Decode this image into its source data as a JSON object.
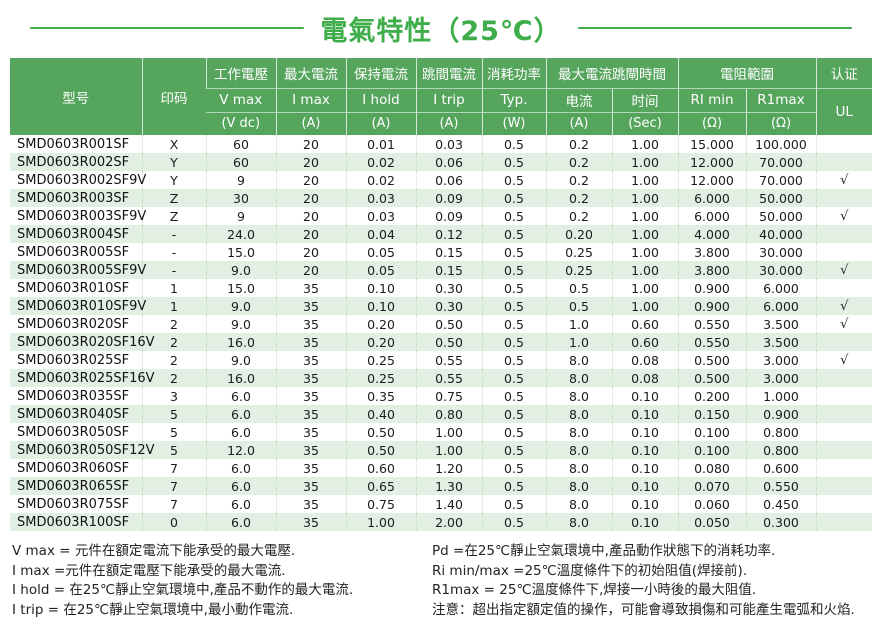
{
  "title": "電氣特性（25℃）",
  "colors": {
    "accent_green": "#3fae4a",
    "header_green": "#56a55d",
    "row_alt_green": "#e1f0e2"
  },
  "table": {
    "header": {
      "model": "型号",
      "print_code": "印码",
      "cols": [
        {
          "group": "工作電壓",
          "sub": "V max",
          "unit": "(V dc)"
        },
        {
          "group": "最大電流",
          "sub": "I max",
          "unit": "(A)"
        },
        {
          "group": "保持電流",
          "sub": "I hold",
          "unit": "(A)"
        },
        {
          "group": "跳間電流",
          "sub": "I trip",
          "unit": "(A)"
        },
        {
          "group": "消耗功率",
          "sub": "Typ.",
          "unit": "(W)"
        }
      ],
      "trip_group": {
        "label": "最大電流跳閘時間",
        "cols": [
          {
            "sub": "电流",
            "unit": "(A)"
          },
          {
            "sub": "时间",
            "unit": "(Sec)"
          }
        ]
      },
      "res_group": {
        "label": "電阻範圍",
        "cols": [
          {
            "sub": "RI min",
            "unit": "(Ω)"
          },
          {
            "sub": "R1max",
            "unit": "(Ω)"
          }
        ]
      },
      "cert_group": {
        "label": "认证",
        "sub": "UL"
      }
    },
    "rows": [
      [
        "SMD0603R001SF",
        "X",
        "60",
        "20",
        "0.01",
        "0.03",
        "0.5",
        "0.2",
        "1.00",
        "15.000",
        "100.000",
        ""
      ],
      [
        "SMD0603R002SF",
        "Y",
        "60",
        "20",
        "0.02",
        "0.06",
        "0.5",
        "0.2",
        "1.00",
        "12.000",
        "70.000",
        ""
      ],
      [
        "SMD0603R002SF9V",
        "Y",
        "9",
        "20",
        "0.02",
        "0.06",
        "0.5",
        "0.2",
        "1.00",
        "12.000",
        "70.000",
        "√"
      ],
      [
        "SMD0603R003SF",
        "Z",
        "30",
        "20",
        "0.03",
        "0.09",
        "0.5",
        "0.2",
        "1.00",
        "6.000",
        "50.000",
        ""
      ],
      [
        "SMD0603R003SF9V",
        "Z",
        "9",
        "20",
        "0.03",
        "0.09",
        "0.5",
        "0.2",
        "1.00",
        "6.000",
        "50.000",
        "√"
      ],
      [
        "SMD0603R004SF",
        "-",
        "24.0",
        "20",
        "0.04",
        "0.12",
        "0.5",
        "0.20",
        "1.00",
        "4.000",
        "40.000",
        ""
      ],
      [
        "SMD0603R005SF",
        "-",
        "15.0",
        "20",
        "0.05",
        "0.15",
        "0.5",
        "0.25",
        "1.00",
        "3.800",
        "30.000",
        ""
      ],
      [
        "SMD0603R005SF9V",
        "-",
        "9.0",
        "20",
        "0.05",
        "0.15",
        "0.5",
        "0.25",
        "1.00",
        "3.800",
        "30.000",
        "√"
      ],
      [
        "SMD0603R010SF",
        "1",
        "15.0",
        "35",
        "0.10",
        "0.30",
        "0.5",
        "0.5",
        "1.00",
        "0.900",
        "6.000",
        ""
      ],
      [
        "SMD0603R010SF9V",
        "1",
        "9.0",
        "35",
        "0.10",
        "0.30",
        "0.5",
        "0.5",
        "1.00",
        "0.900",
        "6.000",
        "√"
      ],
      [
        "SMD0603R020SF",
        "2",
        "9.0",
        "35",
        "0.20",
        "0.50",
        "0.5",
        "1.0",
        "0.60",
        "0.550",
        "3.500",
        "√"
      ],
      [
        "SMD0603R020SF16V",
        "2",
        "16.0",
        "35",
        "0.20",
        "0.50",
        "0.5",
        "1.0",
        "0.60",
        "0.550",
        "3.500",
        ""
      ],
      [
        "SMD0603R025SF",
        "2",
        "9.0",
        "35",
        "0.25",
        "0.55",
        "0.5",
        "8.0",
        "0.08",
        "0.500",
        "3.000",
        "√"
      ],
      [
        "SMD0603R025SF16V",
        "2",
        "16.0",
        "35",
        "0.25",
        "0.55",
        "0.5",
        "8.0",
        "0.08",
        "0.500",
        "3.000",
        ""
      ],
      [
        "SMD0603R035SF",
        "3",
        "6.0",
        "35",
        "0.35",
        "0.75",
        "0.5",
        "8.0",
        "0.10",
        "0.200",
        "1.000",
        ""
      ],
      [
        "SMD0603R040SF",
        "5",
        "6.0",
        "35",
        "0.40",
        "0.80",
        "0.5",
        "8.0",
        "0.10",
        "0.150",
        "0.900",
        ""
      ],
      [
        "SMD0603R050SF",
        "5",
        "6.0",
        "35",
        "0.50",
        "1.00",
        "0.5",
        "8.0",
        "0.10",
        "0.100",
        "0.800",
        ""
      ],
      [
        "SMD0603R050SF12V",
        "5",
        "12.0",
        "35",
        "0.50",
        "1.00",
        "0.5",
        "8.0",
        "0.10",
        "0.100",
        "0.800",
        ""
      ],
      [
        "SMD0603R060SF",
        "7",
        "6.0",
        "35",
        "0.60",
        "1.20",
        "0.5",
        "8.0",
        "0.10",
        "0.080",
        "0.600",
        ""
      ],
      [
        "SMD0603R065SF",
        "7",
        "6.0",
        "35",
        "0.65",
        "1.30",
        "0.5",
        "8.0",
        "0.10",
        "0.070",
        "0.550",
        ""
      ],
      [
        "SMD0603R075SF",
        "7",
        "6.0",
        "35",
        "0.75",
        "1.40",
        "0.5",
        "8.0",
        "0.10",
        "0.060",
        "0.450",
        ""
      ],
      [
        "SMD0603R100SF",
        "0",
        "6.0",
        "35",
        "1.00",
        "2.00",
        "0.5",
        "8.0",
        "0.10",
        "0.050",
        "0.300",
        ""
      ]
    ]
  },
  "notes": {
    "left": [
      "V max = 元件在額定電流下能承受的最大電壓.",
      "I max =元件在額定電壓下能承受的最大電流.",
      "I hold = 在25℃靜止空氣環境中,產品不動作的最大電流.",
      "I trip = 在25℃靜止空氣環境中,最小動作電流."
    ],
    "right": [
      "Pd =在25℃靜止空氣環境中,產品動作狀態下的消耗功率.",
      "Ri min/max =25℃溫度條件下的初始阻值(焊接前).",
      "R1max = 25℃溫度條件下,焊接一小時後的最大阻值.",
      "注意：超出指定額定值的操作，可能會導致損傷和可能產生電弧和火焰."
    ]
  }
}
